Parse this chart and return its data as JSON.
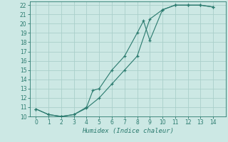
{
  "xlabel": "Humidex (Indice chaleur)",
  "background_color": "#cce8e4",
  "line_color": "#2a7a6e",
  "grid_color": "#aacfca",
  "xlim": [
    -0.5,
    15
  ],
  "ylim": [
    10,
    22.4
  ],
  "xticks": [
    0,
    1,
    2,
    3,
    4,
    5,
    6,
    7,
    8,
    9,
    10,
    11,
    12,
    13,
    14
  ],
  "yticks": [
    10,
    11,
    12,
    13,
    14,
    15,
    16,
    17,
    18,
    19,
    20,
    21,
    22
  ],
  "line1_x": [
    0,
    1,
    2,
    3,
    4,
    4.5,
    5,
    6,
    7,
    8,
    8.5,
    9,
    10,
    11,
    12,
    13,
    14
  ],
  "line1_y": [
    10.8,
    10.2,
    10.0,
    10.2,
    11.0,
    12.8,
    13.0,
    15.0,
    16.5,
    19.0,
    20.3,
    18.2,
    21.5,
    22.0,
    22.0,
    22.0,
    21.8
  ],
  "line2_x": [
    0,
    1,
    2,
    3,
    4,
    5,
    6,
    7,
    8,
    9,
    10,
    11,
    12,
    13,
    14
  ],
  "line2_y": [
    10.8,
    10.2,
    10.0,
    10.2,
    10.9,
    12.0,
    13.5,
    15.0,
    16.5,
    20.5,
    21.5,
    22.0,
    22.0,
    22.0,
    21.8
  ],
  "tick_fontsize": 5.5,
  "xlabel_fontsize": 6.5
}
